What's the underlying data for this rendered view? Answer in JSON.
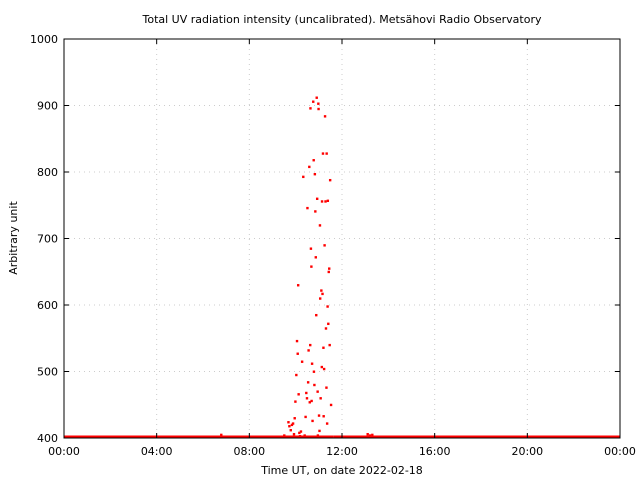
{
  "chart_data": {
    "type": "scatter",
    "title": "Total UV radiation intensity (uncalibrated). Metsähovi Radio Observatory",
    "xlabel": "Time UT, on date 2022-02-18",
    "ylabel": "Arbitrary unit",
    "xlim": [
      0,
      24
    ],
    "ylim": [
      400,
      1000
    ],
    "x_ticks": [
      {
        "value": 0,
        "label": "00:00"
      },
      {
        "value": 4,
        "label": "04:00"
      },
      {
        "value": 8,
        "label": "08:00"
      },
      {
        "value": 12,
        "label": "12:00"
      },
      {
        "value": 16,
        "label": "16:00"
      },
      {
        "value": 20,
        "label": "20:00"
      },
      {
        "value": 24,
        "label": "00:00"
      }
    ],
    "y_ticks": [
      {
        "value": 400,
        "label": "400"
      },
      {
        "value": 500,
        "label": "500"
      },
      {
        "value": 600,
        "label": "600"
      },
      {
        "value": 700,
        "label": "700"
      },
      {
        "value": 800,
        "label": "800"
      },
      {
        "value": 900,
        "label": "900"
      },
      {
        "value": 1000,
        "label": "1000"
      }
    ],
    "grid": true,
    "legend": "none",
    "color": "#ff0000",
    "baseline": {
      "value": 400,
      "x_ranges": [
        [
          0,
          11.65
        ],
        [
          11.65,
          24
        ]
      ]
    },
    "series": [
      {
        "points": [
          [
            6.72,
            402
          ],
          [
            6.78,
            405
          ],
          [
            9.45,
            402
          ],
          [
            9.5,
            404
          ],
          [
            9.68,
            424
          ],
          [
            9.72,
            418
          ],
          [
            9.78,
            412
          ],
          [
            9.83,
            420
          ],
          [
            9.88,
            422
          ],
          [
            9.92,
            406
          ],
          [
            9.95,
            430
          ],
          [
            9.98,
            455
          ],
          [
            10.02,
            495
          ],
          [
            10.05,
            546
          ],
          [
            10.08,
            527
          ],
          [
            10.1,
            630
          ],
          [
            10.12,
            466
          ],
          [
            10.15,
            408
          ],
          [
            10.18,
            403
          ],
          [
            10.22,
            410
          ],
          [
            10.27,
            515
          ],
          [
            10.32,
            793
          ],
          [
            10.38,
            404
          ],
          [
            10.42,
            432
          ],
          [
            10.45,
            468
          ],
          [
            10.48,
            460
          ],
          [
            10.5,
            746
          ],
          [
            10.53,
            484
          ],
          [
            10.55,
            532
          ],
          [
            10.58,
            808
          ],
          [
            10.6,
            454
          ],
          [
            10.62,
            540
          ],
          [
            10.63,
            896
          ],
          [
            10.65,
            685
          ],
          [
            10.67,
            658
          ],
          [
            10.68,
            456
          ],
          [
            10.7,
            512
          ],
          [
            10.72,
            426
          ],
          [
            10.75,
            906
          ],
          [
            10.77,
            818
          ],
          [
            10.78,
            500
          ],
          [
            10.8,
            480
          ],
          [
            10.82,
            797
          ],
          [
            10.84,
            741
          ],
          [
            10.86,
            672
          ],
          [
            10.88,
            585
          ],
          [
            10.9,
            912
          ],
          [
            10.92,
            760
          ],
          [
            10.94,
            470
          ],
          [
            10.95,
            404
          ],
          [
            10.97,
            903
          ],
          [
            10.98,
            895
          ],
          [
            11.0,
            434
          ],
          [
            11.02,
            411
          ],
          [
            11.04,
            720
          ],
          [
            11.05,
            610
          ],
          [
            11.07,
            460
          ],
          [
            11.08,
            402
          ],
          [
            11.1,
            622
          ],
          [
            11.12,
            507
          ],
          [
            11.13,
            756
          ],
          [
            11.15,
            617
          ],
          [
            11.17,
            828
          ],
          [
            11.19,
            536
          ],
          [
            11.2,
            433
          ],
          [
            11.22,
            504
          ],
          [
            11.24,
            690
          ],
          [
            11.26,
            884
          ],
          [
            11.28,
            756
          ],
          [
            11.3,
            565
          ],
          [
            11.32,
            476
          ],
          [
            11.33,
            828
          ],
          [
            11.35,
            422
          ],
          [
            11.37,
            598
          ],
          [
            11.38,
            757
          ],
          [
            11.4,
            572
          ],
          [
            11.42,
            650
          ],
          [
            11.44,
            655
          ],
          [
            11.46,
            540
          ],
          [
            11.48,
            788
          ],
          [
            11.52,
            450
          ],
          [
            13.0,
            402
          ],
          [
            13.1,
            406
          ],
          [
            13.2,
            404
          ],
          [
            13.3,
            405
          ]
        ]
      }
    ]
  }
}
